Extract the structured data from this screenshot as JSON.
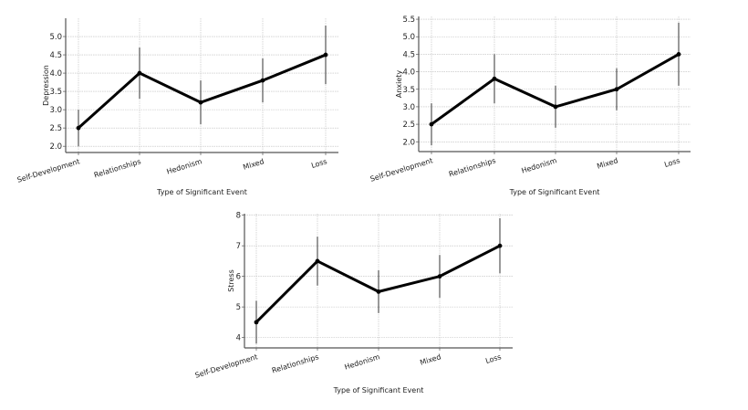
{
  "chart_data": [
    {
      "type": "line",
      "title": "",
      "xlabel": "Type of Significant Event",
      "ylabel": "Depression",
      "categories": [
        "Self-Development",
        "Relationships",
        "Hedonism",
        "Mixed",
        "Loss"
      ],
      "values": [
        2.5,
        4.0,
        3.2,
        3.8,
        4.5
      ],
      "error_low": [
        2.0,
        3.3,
        2.6,
        3.2,
        3.7
      ],
      "error_high": [
        3.0,
        4.7,
        3.8,
        4.4,
        5.3
      ],
      "yticks": [
        2.0,
        2.5,
        3.0,
        3.5,
        4.0,
        4.5,
        5.0
      ],
      "ytick_labels": [
        "2.0",
        "2.5",
        "3.0",
        "3.5",
        "4.0",
        "4.5",
        "5.0"
      ],
      "ylim": [
        1.83,
        5.5
      ],
      "grid": true
    },
    {
      "type": "line",
      "title": "",
      "xlabel": "Type of Significant Event",
      "ylabel": "Anxiety",
      "categories": [
        "Self-Development",
        "Relationships",
        "Hedonism",
        "Mixed",
        "Loss"
      ],
      "values": [
        2.5,
        3.8,
        3.0,
        3.5,
        4.5
      ],
      "error_low": [
        1.9,
        3.1,
        2.4,
        2.9,
        3.6
      ],
      "error_high": [
        3.1,
        4.5,
        3.6,
        4.1,
        5.4
      ],
      "yticks": [
        2.0,
        2.5,
        3.0,
        3.5,
        4.0,
        4.5,
        5.0,
        5.5
      ],
      "ytick_labels": [
        "2.0",
        "2.5",
        "3.0",
        "3.5",
        "4.0",
        "4.5",
        "5.0",
        "5.5"
      ],
      "ylim": [
        1.72,
        5.58
      ],
      "grid": true
    },
    {
      "type": "line",
      "title": "",
      "xlabel": "Type of Significant Event",
      "ylabel": "Stress",
      "categories": [
        "Self-Development",
        "Relationships",
        "Hedonism",
        "Mixed",
        "Loss"
      ],
      "values": [
        4.5,
        6.5,
        5.5,
        6.0,
        7.0
      ],
      "error_low": [
        3.8,
        5.7,
        4.8,
        5.3,
        6.1
      ],
      "error_high": [
        5.2,
        7.3,
        6.2,
        6.7,
        7.9
      ],
      "yticks": [
        4,
        5,
        6,
        7,
        8
      ],
      "ytick_labels": [
        "4",
        "5",
        "6",
        "7",
        "8"
      ],
      "ylim": [
        3.66,
        8.05
      ],
      "grid": true
    }
  ],
  "colors": {
    "line": "#000000",
    "errorbar": "#333333",
    "grid": "#bdbdbd",
    "spine": "#555555"
  }
}
